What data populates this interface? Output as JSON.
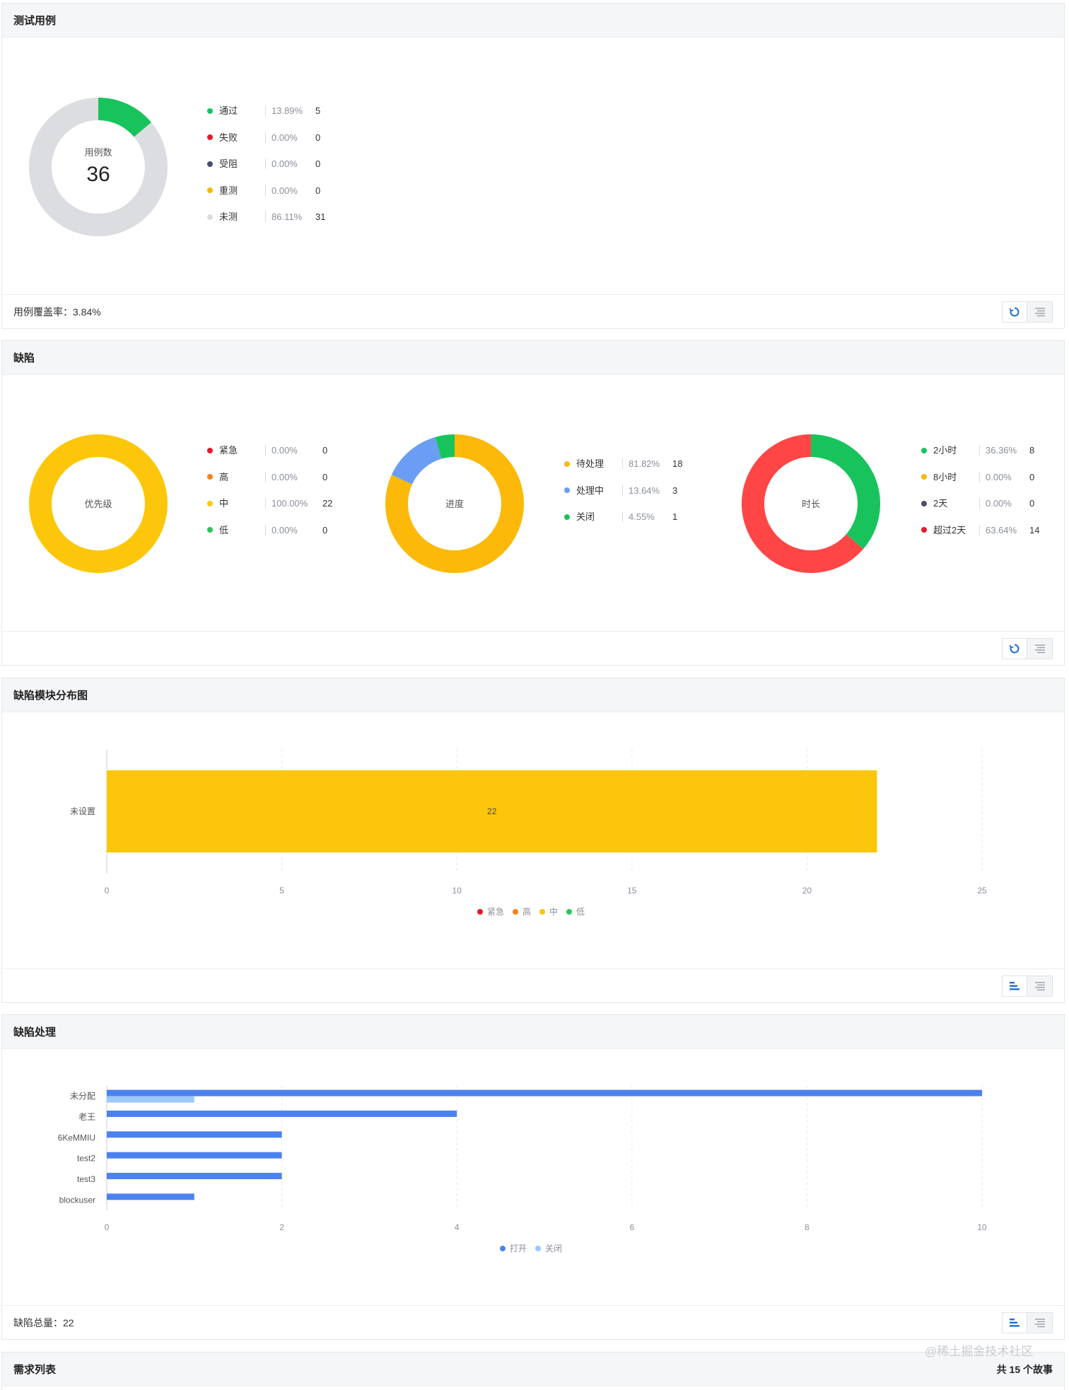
{
  "test_cases": {
    "title": "测试用例",
    "center_label": "用例数",
    "center_value": "36",
    "legend": [
      {
        "name": "通过",
        "pct": "13.89%",
        "count": "5",
        "color": "#19c35c"
      },
      {
        "name": "失败",
        "pct": "0.00%",
        "count": "0",
        "color": "#e6192c"
      },
      {
        "name": "受阻",
        "pct": "0.00%",
        "count": "0",
        "color": "#4a4e6a"
      },
      {
        "name": "重测",
        "pct": "0.00%",
        "count": "0",
        "color": "#f5b800"
      },
      {
        "name": "未测",
        "pct": "86.11%",
        "count": "31",
        "color": "#dcdde0"
      }
    ],
    "footer": "用例覆盖率：3.84%"
  },
  "defects": {
    "title": "缺陷",
    "priority": {
      "center_label": "优先级",
      "legend": [
        {
          "name": "紧急",
          "pct": "0.00%",
          "count": "0",
          "color": "#e6192c"
        },
        {
          "name": "高",
          "pct": "0.00%",
          "count": "0",
          "color": "#f5821f"
        },
        {
          "name": "中",
          "pct": "100.00%",
          "count": "22",
          "color": "#fcc70a"
        },
        {
          "name": "低",
          "pct": "0.00%",
          "count": "0",
          "color": "#2fc25b"
        }
      ]
    },
    "progress": {
      "center_label": "进度",
      "legend": [
        {
          "name": "待处理",
          "pct": "81.82%",
          "count": "18",
          "color": "#fcb90a"
        },
        {
          "name": "处理中",
          "pct": "13.64%",
          "count": "3",
          "color": "#6a9ef5"
        },
        {
          "name": "关闭",
          "pct": "4.55%",
          "count": "1",
          "color": "#19c35c"
        }
      ]
    },
    "duration": {
      "center_label": "时长",
      "legend": [
        {
          "name": "2小时",
          "pct": "36.36%",
          "count": "8",
          "color": "#19c35c"
        },
        {
          "name": "8小时",
          "pct": "0.00%",
          "count": "0",
          "color": "#f5b800"
        },
        {
          "name": "2天",
          "pct": "0.00%",
          "count": "0",
          "color": "#4a4e6a"
        },
        {
          "name": "超过2天",
          "pct": "63.64%",
          "count": "14",
          "color": "#e6192c"
        }
      ]
    }
  },
  "module_chart": {
    "title": "缺陷模块分布图"
  },
  "handling": {
    "title": "缺陷处理",
    "footer": "缺陷总量：22"
  },
  "requirements": {
    "title": "需求列表",
    "count_text": "共 15 个故事"
  },
  "watermark": "@稀土掘金技术社区",
  "chart_data": [
    {
      "type": "pie",
      "center_label": "用例数",
      "center_value": "36",
      "categories": [
        "通过",
        "失败",
        "受阻",
        "重测",
        "未测"
      ],
      "values": [
        5,
        0,
        0,
        0,
        31
      ],
      "colors": [
        "#19c35c",
        "#e6192c",
        "#4a4e6a",
        "#f5b800",
        "#dcdde0"
      ]
    },
    {
      "type": "pie",
      "center_label": "优先级",
      "categories": [
        "紧急",
        "高",
        "中",
        "低"
      ],
      "values": [
        0,
        0,
        22,
        0
      ],
      "colors": [
        "#e6192c",
        "#f5821f",
        "#fcc70a",
        "#2fc25b"
      ]
    },
    {
      "type": "pie",
      "center_label": "进度",
      "categories": [
        "待处理",
        "处理中",
        "关闭"
      ],
      "values": [
        18,
        3,
        1
      ],
      "colors": [
        "#fcb90a",
        "#6a9ef5",
        "#19c35c"
      ]
    },
    {
      "type": "pie",
      "center_label": "时长",
      "categories": [
        "2小时",
        "8小时",
        "2天",
        "超过2天"
      ],
      "values": [
        8,
        0,
        0,
        14
      ],
      "colors": [
        "#19c35c",
        "#f5b800",
        "#4a4e6a",
        "#ff4646"
      ]
    },
    {
      "type": "bar",
      "orientation": "horizontal",
      "stacked": true,
      "categories": [
        "未设置"
      ],
      "series": [
        {
          "name": "紧急",
          "values": [
            0
          ],
          "color": "#e6192c"
        },
        {
          "name": "高",
          "values": [
            0
          ],
          "color": "#f5821f"
        },
        {
          "name": "中",
          "values": [
            22
          ],
          "color": "#fcc70a"
        },
        {
          "name": "低",
          "values": [
            0
          ],
          "color": "#2fc25b"
        }
      ],
      "data_labels": [
        "22"
      ],
      "xlim": [
        0,
        25
      ],
      "xticks": [
        "0",
        "5",
        "10",
        "15",
        "20",
        "25"
      ],
      "legend": "bottom-center",
      "grid": true
    },
    {
      "type": "bar",
      "orientation": "horizontal",
      "categories": [
        "未分配",
        "老王",
        "6KeMMIU",
        "test2",
        "test3",
        "blockuser"
      ],
      "series": [
        {
          "name": "打开",
          "values": [
            10,
            4,
            2,
            2,
            2,
            1
          ],
          "color": "#4c82f0"
        },
        {
          "name": "关闭",
          "values": [
            1,
            0,
            0,
            0,
            0,
            0
          ],
          "color": "#9cc8fa"
        }
      ],
      "xlim": [
        0,
        10
      ],
      "xticks": [
        "0",
        "2",
        "4",
        "6",
        "8",
        "10"
      ],
      "legend": "bottom-center",
      "grid": true
    }
  ]
}
